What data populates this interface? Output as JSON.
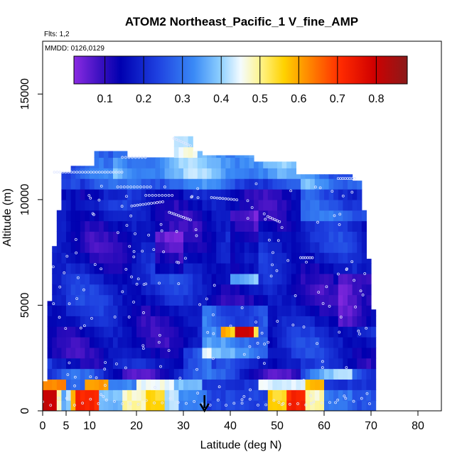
{
  "chart_data": {
    "type": "heatmap",
    "title": "ATOM2 Northeast_Pacific_1 V_fine_AMP",
    "flights_note": "Flts: 1,2",
    "dates_note": "MMDD: 0126,0129",
    "xlabel": "Latitude (deg N)",
    "ylabel": "Altitude (m)",
    "xlim": [
      0,
      85
    ],
    "ylim": [
      0,
      17500
    ],
    "x_ticks": [
      0,
      5,
      10,
      20,
      30,
      40,
      50,
      60,
      70,
      80
    ],
    "y_ticks": [
      0,
      5000,
      10000,
      15000
    ],
    "x_tick_labels": [
      "0",
      "5",
      "10",
      "20",
      "30",
      "40",
      "50",
      "60",
      "70",
      "80"
    ],
    "y_tick_labels": [
      "0",
      "5000",
      "10000",
      "15000"
    ],
    "colorbar": {
      "min": 0.02,
      "max": 0.88,
      "ticks": [
        0.1,
        0.2,
        0.3,
        0.4,
        0.5,
        0.6,
        0.7,
        0.8
      ],
      "tick_labels": [
        "0.1",
        "0.2",
        "0.3",
        "0.4",
        "0.5",
        "0.6",
        "0.7",
        "0.8"
      ]
    },
    "marker": {
      "latitude": 34.5,
      "altitude": 0
    },
    "grid": false,
    "colors": {
      "violet": "#7a1de0",
      "dark_blue": "#0a0aa8",
      "mid_blue": "#2a5cf0",
      "light_blue": "#3aa8f8",
      "pale_blue": "#d8f0ff",
      "white": "#ffffff",
      "yellow": "#ffe040",
      "orange": "#ff8c00",
      "red": "#e80000",
      "dark_red": "#8a1212"
    }
  }
}
